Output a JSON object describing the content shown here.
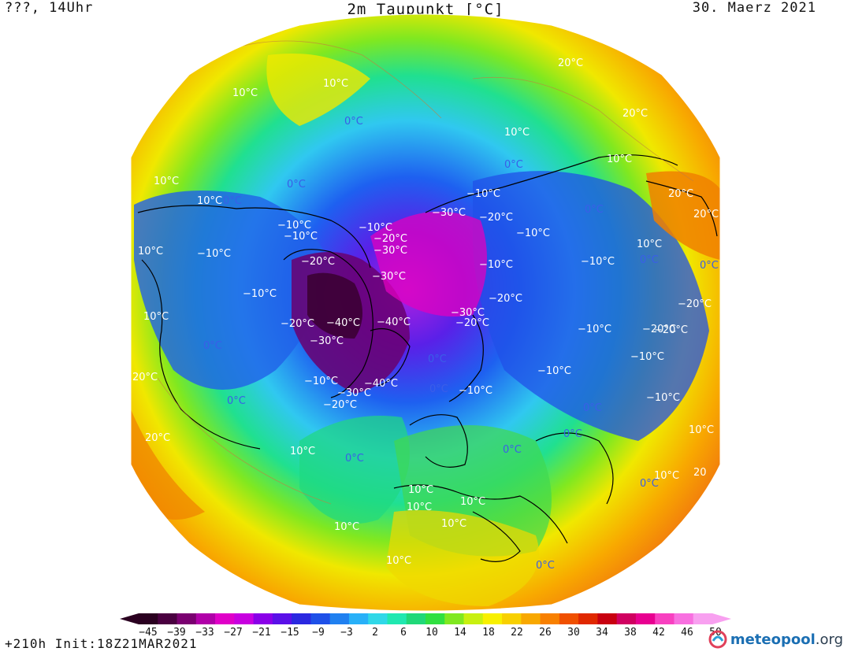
{
  "header": {
    "left": "???, 14Uhr",
    "title": "2m Taupunkt [°C]",
    "right": "30. Maerz 2021"
  },
  "footer": {
    "run": "+210h Init:18Z21MAR2021",
    "logo_main": "meteopool",
    "logo_tld": ".org"
  },
  "legend": {
    "ticks": [
      "-45",
      "-39",
      "-33",
      "-27",
      "-21",
      "-15",
      "-9",
      "-3",
      "2",
      "6",
      "10",
      "14",
      "18",
      "22",
      "26",
      "30",
      "34",
      "38",
      "42",
      "46",
      "50"
    ],
    "colors": [
      "#2a0020",
      "#4a0040",
      "#7a0070",
      "#b000a8",
      "#e000c8",
      "#c800e0",
      "#8a00e8",
      "#5a10e8",
      "#2a28e0",
      "#1e50e8",
      "#2080f0",
      "#28b0f8",
      "#30d8e8",
      "#20e8b0",
      "#20d878",
      "#30e040",
      "#80e820",
      "#c8f010",
      "#f8f000",
      "#f8d000",
      "#f8a800",
      "#f88000",
      "#f05000",
      "#e02800",
      "#c80010",
      "#d00060",
      "#e80090",
      "#f840c0",
      "#f870e0",
      "#f8a0f0"
    ]
  },
  "map": {
    "labels_white": [
      {
        "t": "20°C"
      },
      {
        "t": "20°C"
      },
      {
        "t": "10°C"
      },
      {
        "t": "10°C"
      },
      {
        "t": "10°C"
      },
      {
        "t": "10°C"
      },
      {
        "t": "10°C"
      },
      {
        "t": "20°C"
      },
      {
        "t": "20°C"
      },
      {
        "t": "-10°C"
      },
      {
        "t": "-30°C"
      },
      {
        "t": "-20°C"
      },
      {
        "t": "-10°C"
      },
      {
        "t": "-10°C"
      },
      {
        "t": "-10°C"
      },
      {
        "t": "-10°C"
      },
      {
        "t": "-20°C"
      },
      {
        "t": "-30°C"
      },
      {
        "t": "-10°C"
      },
      {
        "t": "-10°C"
      },
      {
        "t": "-20°C"
      },
      {
        "t": "-30°C"
      },
      {
        "t": "-10°C"
      },
      {
        "t": "-20°C"
      },
      {
        "t": "-10°C"
      },
      {
        "t": "-20°C"
      },
      {
        "t": "-40°C"
      },
      {
        "t": "-40°C"
      },
      {
        "t": "-30°C"
      },
      {
        "t": "-20°C"
      },
      {
        "t": "-30°C"
      },
      {
        "t": "-20°C"
      },
      {
        "t": "-10°C"
      },
      {
        "t": "-20°C"
      },
      {
        "t": "-10°C"
      },
      {
        "t": "-10°C"
      },
      {
        "t": "-30°C"
      },
      {
        "t": "-40°C"
      },
      {
        "t": "-20°C"
      },
      {
        "t": "-10°C"
      },
      {
        "t": "-10°C"
      },
      {
        "t": "-10°C"
      },
      {
        "t": "10°C"
      },
      {
        "t": "10°C"
      },
      {
        "t": "20°C"
      },
      {
        "t": "20°C"
      },
      {
        "t": "10°C"
      },
      {
        "t": "10°C"
      },
      {
        "t": "10°C"
      },
      {
        "t": "10°C"
      },
      {
        "t": "10°C"
      },
      {
        "t": "10°C"
      },
      {
        "t": "10°C"
      },
      {
        "t": "10°C"
      },
      {
        "t": "10°C"
      },
      {
        "t": "20"
      },
      {
        "t": "10°C"
      },
      {
        "t": "10°C"
      },
      {
        "t": "-20°C"
      }
    ],
    "labels_blue": [
      {
        "t": "0°C"
      },
      {
        "t": "0°C"
      },
      {
        "t": "0°C"
      },
      {
        "t": "0°C"
      },
      {
        "t": "0°C"
      },
      {
        "t": "0°C"
      },
      {
        "t": "0°C"
      },
      {
        "t": "0°C"
      },
      {
        "t": "0°C"
      },
      {
        "t": "0°C"
      },
      {
        "t": "0°C"
      },
      {
        "t": "0°C"
      },
      {
        "t": "0°C"
      },
      {
        "t": "0°C"
      },
      {
        "t": "0°C"
      },
      {
        "t": "0°C"
      },
      {
        "t": "0°C"
      }
    ]
  }
}
